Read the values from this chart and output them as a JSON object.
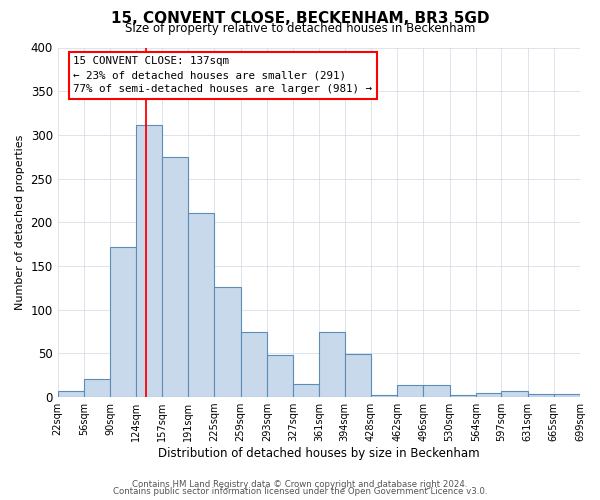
{
  "title": "15, CONVENT CLOSE, BECKENHAM, BR3 5GD",
  "subtitle": "Size of property relative to detached houses in Beckenham",
  "xlabel": "Distribution of detached houses by size in Beckenham",
  "ylabel": "Number of detached properties",
  "footer1": "Contains HM Land Registry data © Crown copyright and database right 2024.",
  "footer2": "Contains public sector information licensed under the Open Government Licence v3.0.",
  "bin_edges": [
    22,
    56,
    90,
    124,
    157,
    191,
    225,
    259,
    293,
    327,
    361,
    394,
    428,
    462,
    496,
    530,
    564,
    597,
    631,
    665,
    699
  ],
  "bin_heights": [
    7,
    21,
    172,
    311,
    275,
    211,
    126,
    74,
    48,
    15,
    74,
    49,
    2,
    14,
    14,
    2,
    5,
    7,
    3,
    3
  ],
  "bar_color": "#c9d9ec",
  "bar_edge_color": "#5b8db8",
  "red_line_x": 137,
  "annotation_title": "15 CONVENT CLOSE: 137sqm",
  "annotation_line1": "← 23% of detached houses are smaller (291)",
  "annotation_line2": "77% of semi-detached houses are larger (981) →",
  "ylim": [
    0,
    400
  ],
  "yticks": [
    0,
    50,
    100,
    150,
    200,
    250,
    300,
    350,
    400
  ],
  "background_color": "#ffffff",
  "grid_color": "#d0d8e4"
}
